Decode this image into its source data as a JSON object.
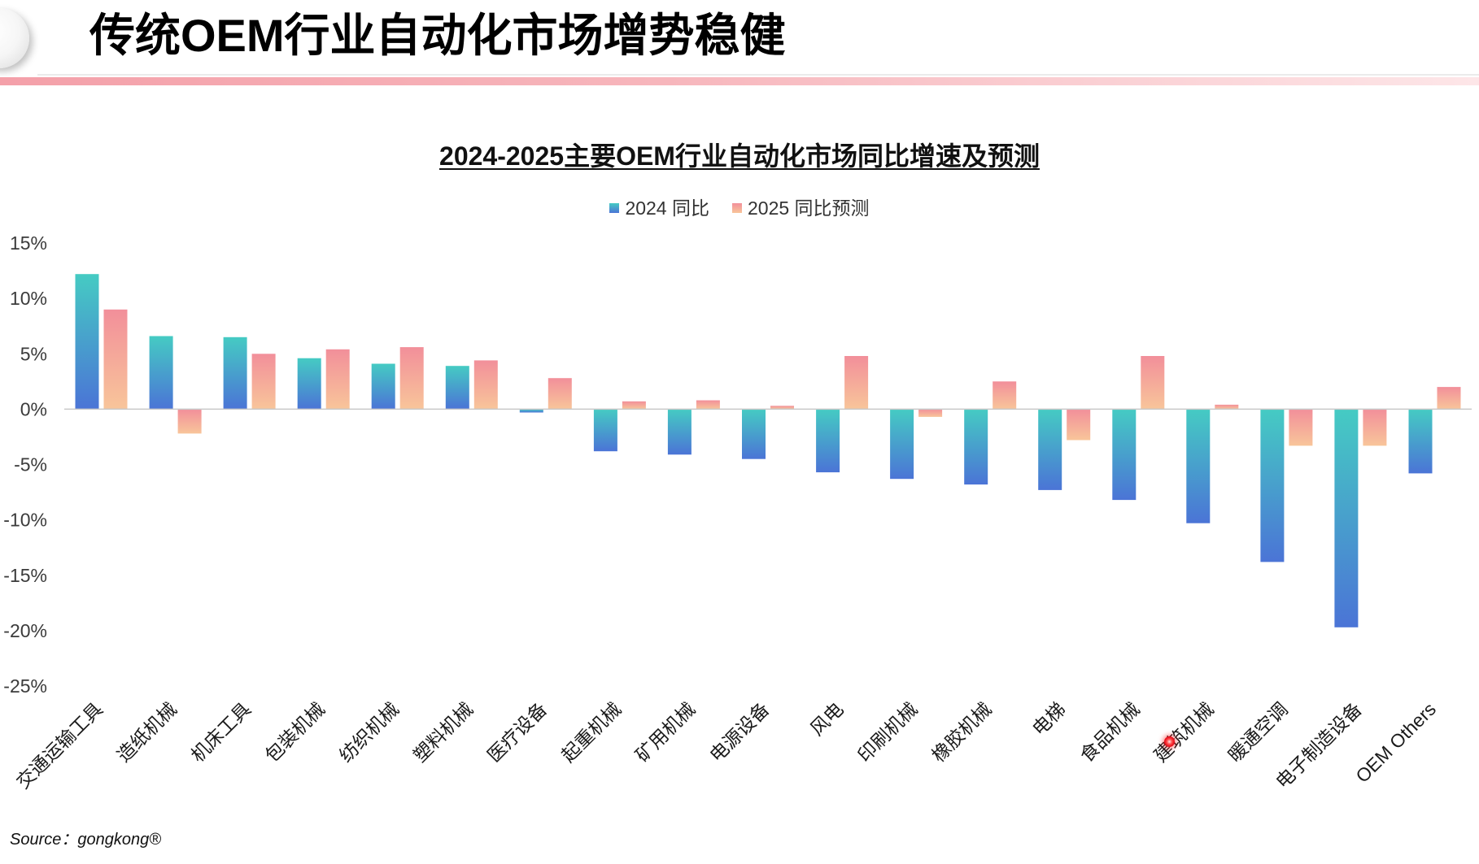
{
  "slide": {
    "title": "传统OEM行业自动化市场增势稳健",
    "source": "Source：gongkong®"
  },
  "colors": {
    "title_text": "#000000",
    "header_band_start": "#f4a0a9",
    "header_band_mid": "#f7b6bc",
    "header_band_end": "#fde6e8",
    "axis_line": "#c9c9c9",
    "tick_text": "#3b3b3b",
    "category_text": "#1a1a1a",
    "pointer": "#e3000f"
  },
  "chart_data": {
    "type": "bar",
    "title": "2024-2025主要OEM行业自动化市场同比增速及预测",
    "categories": [
      "交通运输工具",
      "造纸机械",
      "机床工具",
      "包装机械",
      "纺织机械",
      "塑料机械",
      "医疗设备",
      "起重机械",
      "矿用机械",
      "电源设备",
      "风电",
      "印刷机械",
      "橡胶机械",
      "电梯",
      "食品机械",
      "建筑机械",
      "暖通空调",
      "电子制造设备",
      "OEM Others"
    ],
    "series": [
      {
        "name": "2024 同比",
        "color_top": "#45cbc3",
        "color_bottom": "#4b74d6",
        "values": [
          12.2,
          6.6,
          6.5,
          4.6,
          4.1,
          3.9,
          -0.3,
          -3.8,
          -4.1,
          -4.5,
          -5.7,
          -6.3,
          -6.8,
          -7.3,
          -8.2,
          -10.3,
          -13.8,
          -19.7,
          -5.8
        ]
      },
      {
        "name": "2025 同比预测",
        "color_top": "#f28f9a",
        "color_bottom": "#f8c59a",
        "values": [
          9.0,
          -2.2,
          5.0,
          5.4,
          5.6,
          4.4,
          2.8,
          0.7,
          0.8,
          0.3,
          4.8,
          -0.7,
          2.5,
          -2.8,
          4.8,
          0.4,
          -3.3,
          -3.3,
          2.0
        ]
      }
    ],
    "ylim": [
      -25,
      15
    ],
    "yticks": [
      15,
      10,
      5,
      0,
      -5,
      -10,
      -15,
      -20,
      -25
    ],
    "ytick_labels": [
      "15%",
      "10%",
      "5%",
      "0%",
      "-5%",
      "-10%",
      "-15%",
      "-20%",
      "-25%"
    ],
    "grid": false,
    "legend_position": "top"
  }
}
